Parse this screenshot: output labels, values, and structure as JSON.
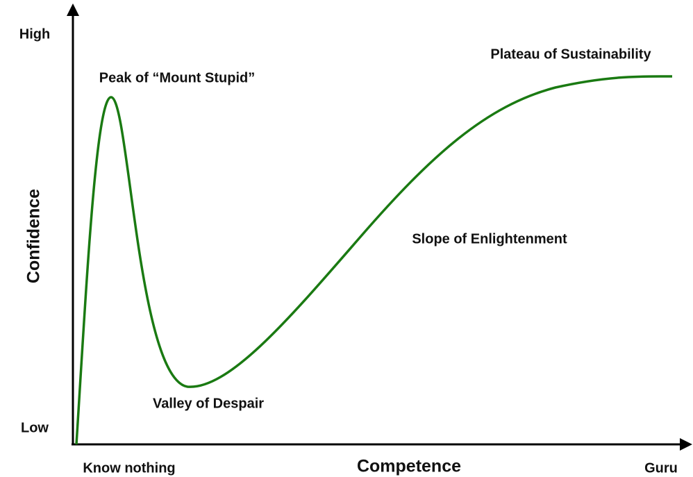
{
  "axes": {
    "y_label": "Confidence",
    "y_high": "High",
    "y_low": "Low",
    "x_label": "Competence",
    "x_start": "Know nothing",
    "x_end": "Guru"
  },
  "annotations": [
    "Peak of “Mount Stupid”",
    "Valley of Despair",
    "Slope of Enlightenment",
    "Plateau of Sustainability"
  ]
}
